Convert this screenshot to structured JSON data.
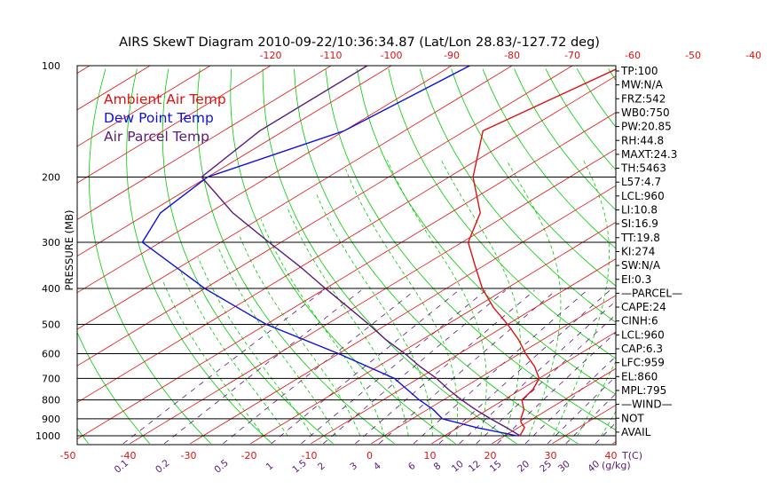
{
  "chart_data": {
    "type": "line",
    "title": "AIRS SkewT Diagram 2010-09-22/10:36:34.87 (Lat/Lon 28.83/-127.72 deg)",
    "ylabel": "PRESSURE (MB)",
    "xlabel": "T(C)",
    "mixing_ratio_unit": "(g/kg)",
    "legend": [
      "Ambient Air Temp",
      "Dew Point Temp",
      "Air Parcel Temp"
    ],
    "legend_colors": [
      "#e01010",
      "#1010e0",
      "#5a1a7a"
    ],
    "pressure_ticks": [
      100,
      200,
      300,
      400,
      500,
      600,
      700,
      800,
      900,
      1000
    ],
    "temperature_ticks_top": [
      -120,
      -110,
      -100,
      -90,
      -80,
      -70,
      -60,
      -50,
      -40
    ],
    "temperature_ticks_bottom": [
      -50,
      -40,
      -30,
      -20,
      -10,
      0,
      10,
      20,
      30,
      40
    ],
    "mixing_ratio_ticks": [
      "0.1",
      "0.2",
      "0.5",
      "1",
      "1.5",
      "2",
      "3",
      "4",
      "6",
      "8",
      "10",
      "12",
      "15",
      "20",
      "25",
      "30",
      "40"
    ],
    "series": [
      {
        "name": "Ambient Air Temp",
        "color": "#e01010",
        "points": [
          [
            100,
            -61.5
          ],
          [
            120,
            -64
          ],
          [
            150,
            -67
          ],
          [
            200,
            -56
          ],
          [
            250,
            -45
          ],
          [
            300,
            -39
          ],
          [
            350,
            -31
          ],
          [
            400,
            -24
          ],
          [
            450,
            -17
          ],
          [
            500,
            -10
          ],
          [
            550,
            -4
          ],
          [
            600,
            1
          ],
          [
            650,
            6
          ],
          [
            700,
            10
          ],
          [
            750,
            12
          ],
          [
            800,
            13
          ],
          [
            850,
            16
          ],
          [
            900,
            18
          ],
          [
            920,
            19
          ],
          [
            950,
            21
          ],
          [
            1000,
            22.5
          ]
        ]
      },
      {
        "name": "Dew Point Temp",
        "color": "#1010e0",
        "points": [
          [
            100,
            -87
          ],
          [
            150,
            -90
          ],
          [
            200,
            -100
          ],
          [
            250,
            -98
          ],
          [
            300,
            -93
          ],
          [
            400,
            -70
          ],
          [
            500,
            -50
          ],
          [
            600,
            -30
          ],
          [
            700,
            -14
          ],
          [
            800,
            -4
          ],
          [
            850,
            1
          ],
          [
            900,
            5
          ],
          [
            950,
            13
          ],
          [
            1000,
            22
          ]
        ]
      },
      {
        "name": "Air Parcel Temp",
        "color": "#5a1a7a",
        "points": [
          [
            100,
            -104
          ],
          [
            150,
            -104
          ],
          [
            200,
            -101
          ],
          [
            250,
            -86
          ],
          [
            300,
            -72
          ],
          [
            350,
            -60
          ],
          [
            400,
            -50
          ],
          [
            450,
            -41
          ],
          [
            500,
            -33
          ],
          [
            550,
            -26
          ],
          [
            600,
            -19
          ],
          [
            650,
            -13
          ],
          [
            700,
            -7
          ],
          [
            750,
            -2
          ],
          [
            800,
            3
          ],
          [
            850,
            8
          ],
          [
            900,
            13
          ],
          [
            950,
            18
          ],
          [
            1000,
            22.5
          ]
        ]
      }
    ]
  },
  "indices": [
    "TP:100",
    "MW:N/A",
    "FRZ:542",
    "WB0:750",
    "PW:20.85",
    "RH:44.8",
    "MAXT:24.3",
    "TH:5463",
    "L57:4.7",
    "LCL:960",
    "LI:10.8",
    "SI:16.9",
    "TT:19.8",
    "KI:274",
    "SW:N/A",
    "EI:0.3",
    "—PARCEL—",
    "CAPE:24",
    "CINH:6",
    "LCL:960",
    "CAP:6.3",
    "LFC:959",
    "EL:860",
    "MPL:795",
    "—WIND—",
    "NOT",
    "AVAIL"
  ],
  "colors": {
    "isotherm": "#e01010",
    "dry_adiabat": "#00cc00",
    "moist_adiabat": "#00cc00",
    "mixing_ratio": "#5a1a7a",
    "isobar": "#000000"
  }
}
